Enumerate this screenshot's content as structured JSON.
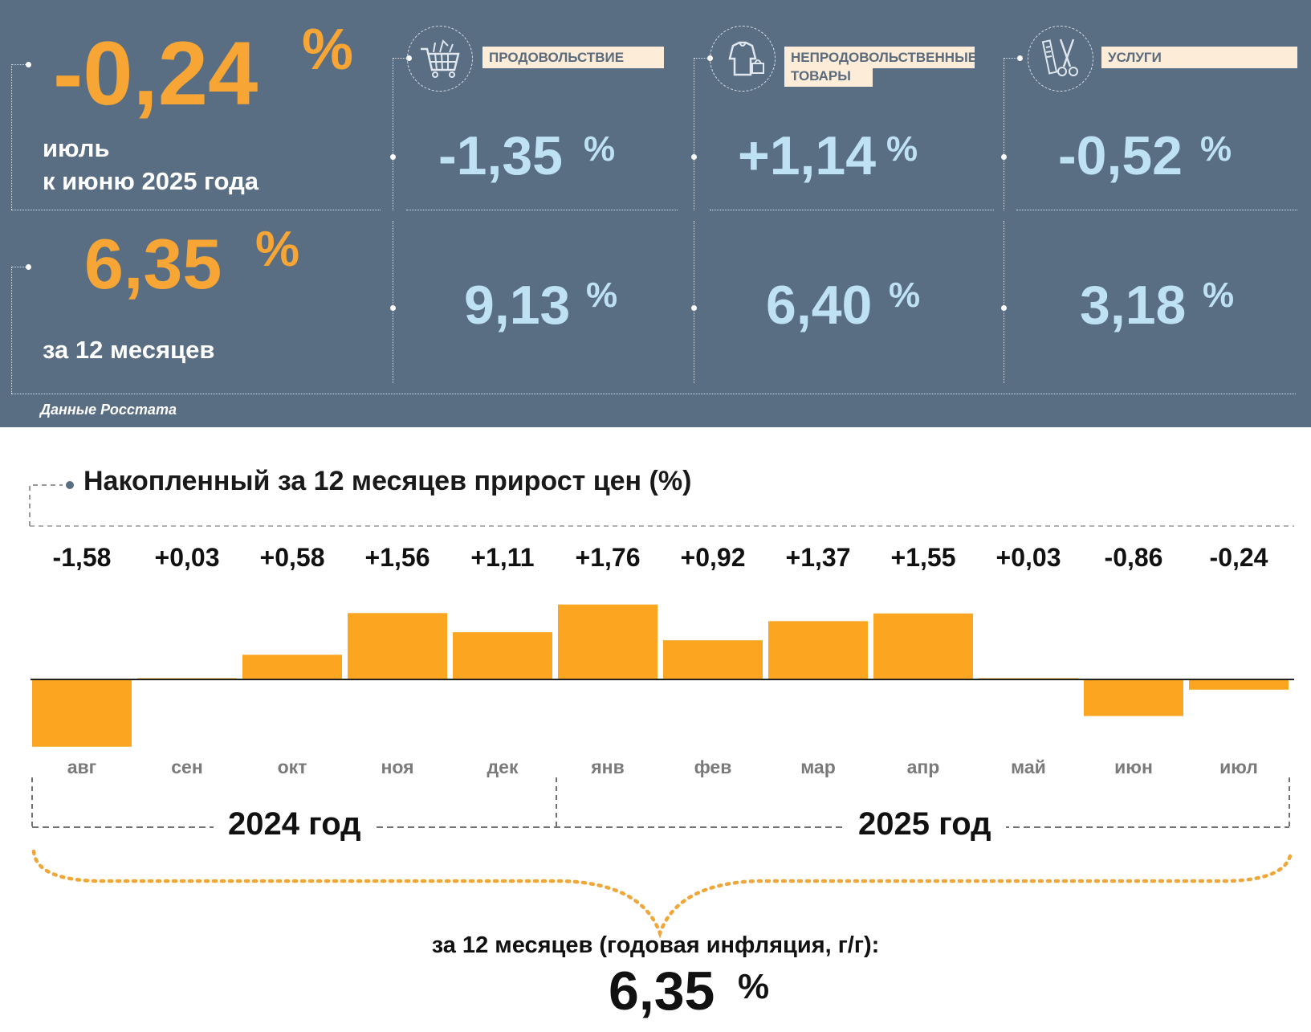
{
  "panel": {
    "mom": {
      "value": "-0,24",
      "unit": "%",
      "line1": "июль",
      "line2": "к июню 2025 года"
    },
    "yoy": {
      "value": "6,35",
      "unit": "%",
      "label": "за 12 месяцев"
    },
    "categories": [
      {
        "label": "ПРОДОВОЛЬСТВИЕ",
        "icon": "shopping-cart-icon",
        "mom": "-1,35",
        "yoy": "9,13",
        "unit": "%"
      },
      {
        "label1": "НЕПРОДОВОЛЬСТВЕННЫЕ",
        "label2": "ТОВАРЫ",
        "icon": "clothing-icon",
        "mom": "+1,14",
        "yoy": "6,40",
        "unit": "%"
      },
      {
        "label": "УСЛУГИ",
        "icon": "scissors-comb-icon",
        "mom": "-0,52",
        "yoy": "3,18",
        "unit": "%"
      }
    ],
    "source": "Данные Росстата"
  },
  "colors": {
    "panel_bg": "#596e83",
    "accent_orange": "#f7a534",
    "light_blue": "#bfe1f4",
    "label_bg": "#fdecd8",
    "bar": "#fca520"
  },
  "chart_data": {
    "type": "bar",
    "title": "Накопленный за 12 месяцев прирост цен (%)",
    "categories": [
      "авг",
      "сен",
      "окт",
      "ноя",
      "дек",
      "янв",
      "фев",
      "мар",
      "апр",
      "май",
      "июн",
      "июл"
    ],
    "values": [
      -1.58,
      0.03,
      0.58,
      1.56,
      1.11,
      1.76,
      0.92,
      1.37,
      1.55,
      0.03,
      -0.86,
      -0.24
    ],
    "value_labels": [
      "-1,58",
      "+0,03",
      "+0,58",
      "+1,56",
      "+1,11",
      "+1,76",
      "+0,92",
      "+1,37",
      "+1,55",
      "+0,03",
      "-0,86",
      "-0,24"
    ],
    "years": [
      "2024 год",
      "2025 год"
    ],
    "annual_label": "за 12 месяцев (годовая инфляция, г/г):",
    "annual_value": "6,35",
    "annual_unit": "%"
  }
}
